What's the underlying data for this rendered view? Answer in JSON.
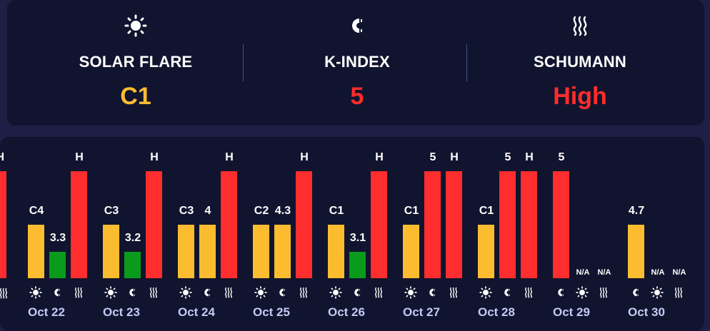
{
  "header": {
    "metrics": [
      {
        "icon": "sun-icon",
        "label": "SOLAR FLARE",
        "value": "C1",
        "color": "#fbbd2f"
      },
      {
        "icon": "magnet-icon",
        "label": "K-INDEX",
        "value": "5",
        "color": "#ff2d2d"
      },
      {
        "icon": "waves-icon",
        "label": "SCHUMANN",
        "value": "High",
        "color": "#ff2d2d"
      }
    ]
  },
  "colors": {
    "yellow": "#fbbd2f",
    "green": "#0a9b1d",
    "red": "#ff2d2d"
  },
  "chart_data": {
    "type": "bar",
    "series_order": [
      "solar_flare",
      "k_index",
      "schumann"
    ],
    "left_partial": {
      "schumann": "H"
    },
    "days": [
      {
        "date": "Oct 22",
        "solar_flare": "C4",
        "k_index": "3.3",
        "schumann": "H"
      },
      {
        "date": "Oct 23",
        "solar_flare": "C3",
        "k_index": "3.2",
        "schumann": "H"
      },
      {
        "date": "Oct 24",
        "solar_flare": "C3",
        "k_index": "4",
        "schumann": "H"
      },
      {
        "date": "Oct 25",
        "solar_flare": "C2",
        "k_index": "4.3",
        "schumann": "H"
      },
      {
        "date": "Oct 26",
        "solar_flare": "C1",
        "k_index": "3.1",
        "schumann": "H"
      },
      {
        "date": "Oct 27",
        "solar_flare": "C1",
        "k_index": "5",
        "schumann": "H"
      },
      {
        "date": "Oct 28",
        "solar_flare": "C1",
        "k_index": "5",
        "schumann": "H"
      },
      {
        "date": "Oct 29",
        "solar_flare": null,
        "k_index": "5",
        "schumann": null,
        "order": [
          "k_index",
          "solar_flare",
          "schumann"
        ]
      },
      {
        "date": "Oct 30",
        "solar_flare": null,
        "k_index": "4.7",
        "schumann": null,
        "order": [
          "k_index",
          "solar_flare",
          "schumann"
        ]
      }
    ],
    "na_label": "N/A"
  }
}
